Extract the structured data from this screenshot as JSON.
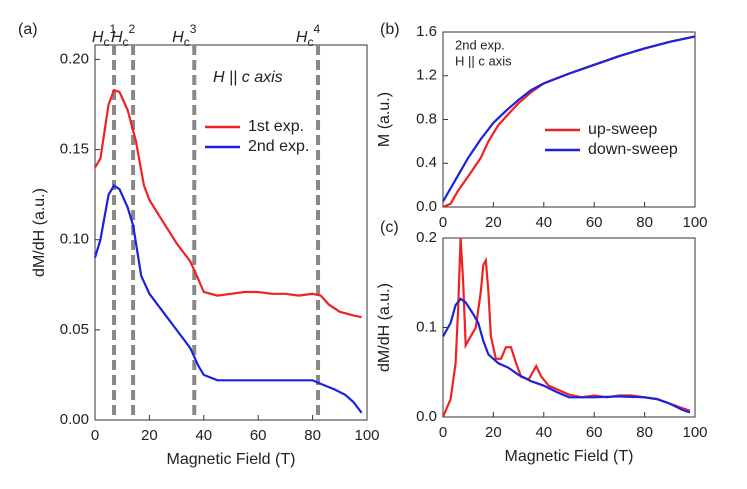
{
  "chart_data": [
    {
      "type": "line",
      "panel_label": "(a)",
      "x_label": "Magnetic Field (T)",
      "y_label": "dM/dH (a.u.)",
      "note": "H || c axis",
      "xlim": [
        0,
        100
      ],
      "xticks": [
        0,
        20,
        40,
        60,
        80,
        100
      ],
      "ylim": [
        0,
        0.208
      ],
      "yticks": [
        {
          "value": 0,
          "label": "0.00"
        },
        0.05,
        {
          "value": 0.1,
          "label": "0.10"
        },
        0.15,
        {
          "value": 0.2,
          "label": "0.20"
        }
      ],
      "annotations": [
        {
          "x": 7,
          "symbol": "H",
          "sub": "c",
          "sup": "1"
        },
        {
          "x": 14,
          "symbol": "H",
          "sub": "c",
          "sup": "2"
        },
        {
          "x": 36.5,
          "symbol": "H",
          "sub": "c",
          "sup": "3"
        },
        {
          "x": 82,
          "symbol": "H",
          "sub": "c",
          "sup": "4"
        }
      ],
      "series": [
        {
          "name": "1st exp.",
          "color": "#ee2222",
          "x": [
            0,
            2,
            5,
            7,
            9,
            12,
            15,
            18,
            20,
            25,
            30,
            35,
            38,
            40,
            45,
            50,
            55,
            60,
            65,
            70,
            75,
            80,
            83,
            86,
            90,
            95,
            98
          ],
          "values": [
            0.14,
            0.145,
            0.175,
            0.183,
            0.182,
            0.172,
            0.155,
            0.13,
            0.122,
            0.11,
            0.098,
            0.088,
            0.078,
            0.071,
            0.069,
            0.07,
            0.071,
            0.071,
            0.07,
            0.07,
            0.069,
            0.07,
            0.069,
            0.064,
            0.06,
            0.058,
            0.057
          ]
        },
        {
          "name": "2nd exp.",
          "color": "#1a22dd",
          "x": [
            0,
            2,
            5,
            7,
            9,
            12,
            14,
            17,
            20,
            25,
            30,
            35,
            38,
            40,
            45,
            50,
            60,
            70,
            80,
            83,
            88,
            92,
            95,
            98
          ],
          "values": [
            0.09,
            0.1,
            0.125,
            0.13,
            0.128,
            0.118,
            0.108,
            0.08,
            0.07,
            0.06,
            0.05,
            0.04,
            0.03,
            0.025,
            0.022,
            0.022,
            0.022,
            0.022,
            0.022,
            0.02,
            0.017,
            0.014,
            0.01,
            0.004
          ]
        }
      ]
    },
    {
      "type": "line",
      "panel_label": "(b)",
      "y_label": "M (a.u.)",
      "note_lines": [
        "2nd exp.",
        "H || c axis"
      ],
      "xlim": [
        0,
        100
      ],
      "xticks": [
        0,
        20,
        40,
        60,
        80,
        100
      ],
      "ylim": [
        0,
        1.6
      ],
      "yticks": [
        {
          "value": 0,
          "label": "0.0"
        },
        0.4,
        0.8,
        1.2,
        1.6
      ],
      "series": [
        {
          "name": "up-sweep",
          "color": "#ee2222",
          "x": [
            0,
            3,
            6,
            10,
            15,
            18,
            22,
            26,
            30,
            35,
            40,
            50,
            60,
            70,
            80,
            90,
            100
          ],
          "values": [
            0,
            0.03,
            0.15,
            0.28,
            0.45,
            0.6,
            0.75,
            0.85,
            0.95,
            1.05,
            1.13,
            1.22,
            1.3,
            1.38,
            1.45,
            1.51,
            1.56
          ]
        },
        {
          "name": "down-sweep",
          "color": "#1a22dd",
          "x": [
            0,
            5,
            10,
            15,
            20,
            25,
            30,
            35,
            40,
            50,
            60,
            70,
            80,
            90,
            100
          ],
          "values": [
            0.05,
            0.25,
            0.45,
            0.62,
            0.77,
            0.88,
            0.98,
            1.07,
            1.13,
            1.22,
            1.3,
            1.38,
            1.45,
            1.51,
            1.56
          ]
        }
      ]
    },
    {
      "type": "line",
      "panel_label": "(c)",
      "x_label": "Magnetic Field (T)",
      "y_label": "dM/dH (a.u.)",
      "xlim": [
        0,
        100
      ],
      "xticks": [
        0,
        20,
        40,
        60,
        80,
        100
      ],
      "ylim": [
        0,
        0.2
      ],
      "yticks": [
        {
          "value": 0,
          "label": "0.0"
        },
        0.1,
        0.2
      ],
      "series": [
        {
          "name": "up-sweep",
          "color": "#ee2222",
          "x": [
            0,
            3,
            5,
            6,
            7,
            8,
            9,
            11,
            13,
            15,
            16,
            17,
            18,
            19,
            21,
            23,
            25,
            27,
            29,
            31,
            34,
            37,
            39,
            42,
            46,
            50,
            55,
            60,
            65,
            70,
            75,
            80,
            85,
            90,
            95,
            98
          ],
          "values": [
            0,
            0.02,
            0.06,
            0.12,
            0.2,
            0.15,
            0.08,
            0.09,
            0.1,
            0.14,
            0.17,
            0.175,
            0.14,
            0.09,
            0.065,
            0.065,
            0.078,
            0.078,
            0.06,
            0.045,
            0.042,
            0.057,
            0.045,
            0.035,
            0.03,
            0.025,
            0.022,
            0.024,
            0.022,
            0.024,
            0.024,
            0.022,
            0.02,
            0.015,
            0.01,
            0.007
          ]
        },
        {
          "name": "down-sweep",
          "color": "#1a22dd",
          "x": [
            0,
            3,
            5,
            7,
            9,
            12,
            14,
            16,
            18,
            22,
            26,
            30,
            35,
            40,
            45,
            50,
            60,
            70,
            80,
            85,
            90,
            95,
            98
          ],
          "values": [
            0.09,
            0.105,
            0.125,
            0.132,
            0.128,
            0.115,
            0.105,
            0.085,
            0.07,
            0.06,
            0.055,
            0.047,
            0.04,
            0.035,
            0.028,
            0.022,
            0.022,
            0.023,
            0.022,
            0.02,
            0.015,
            0.008,
            0.005
          ]
        }
      ]
    }
  ]
}
